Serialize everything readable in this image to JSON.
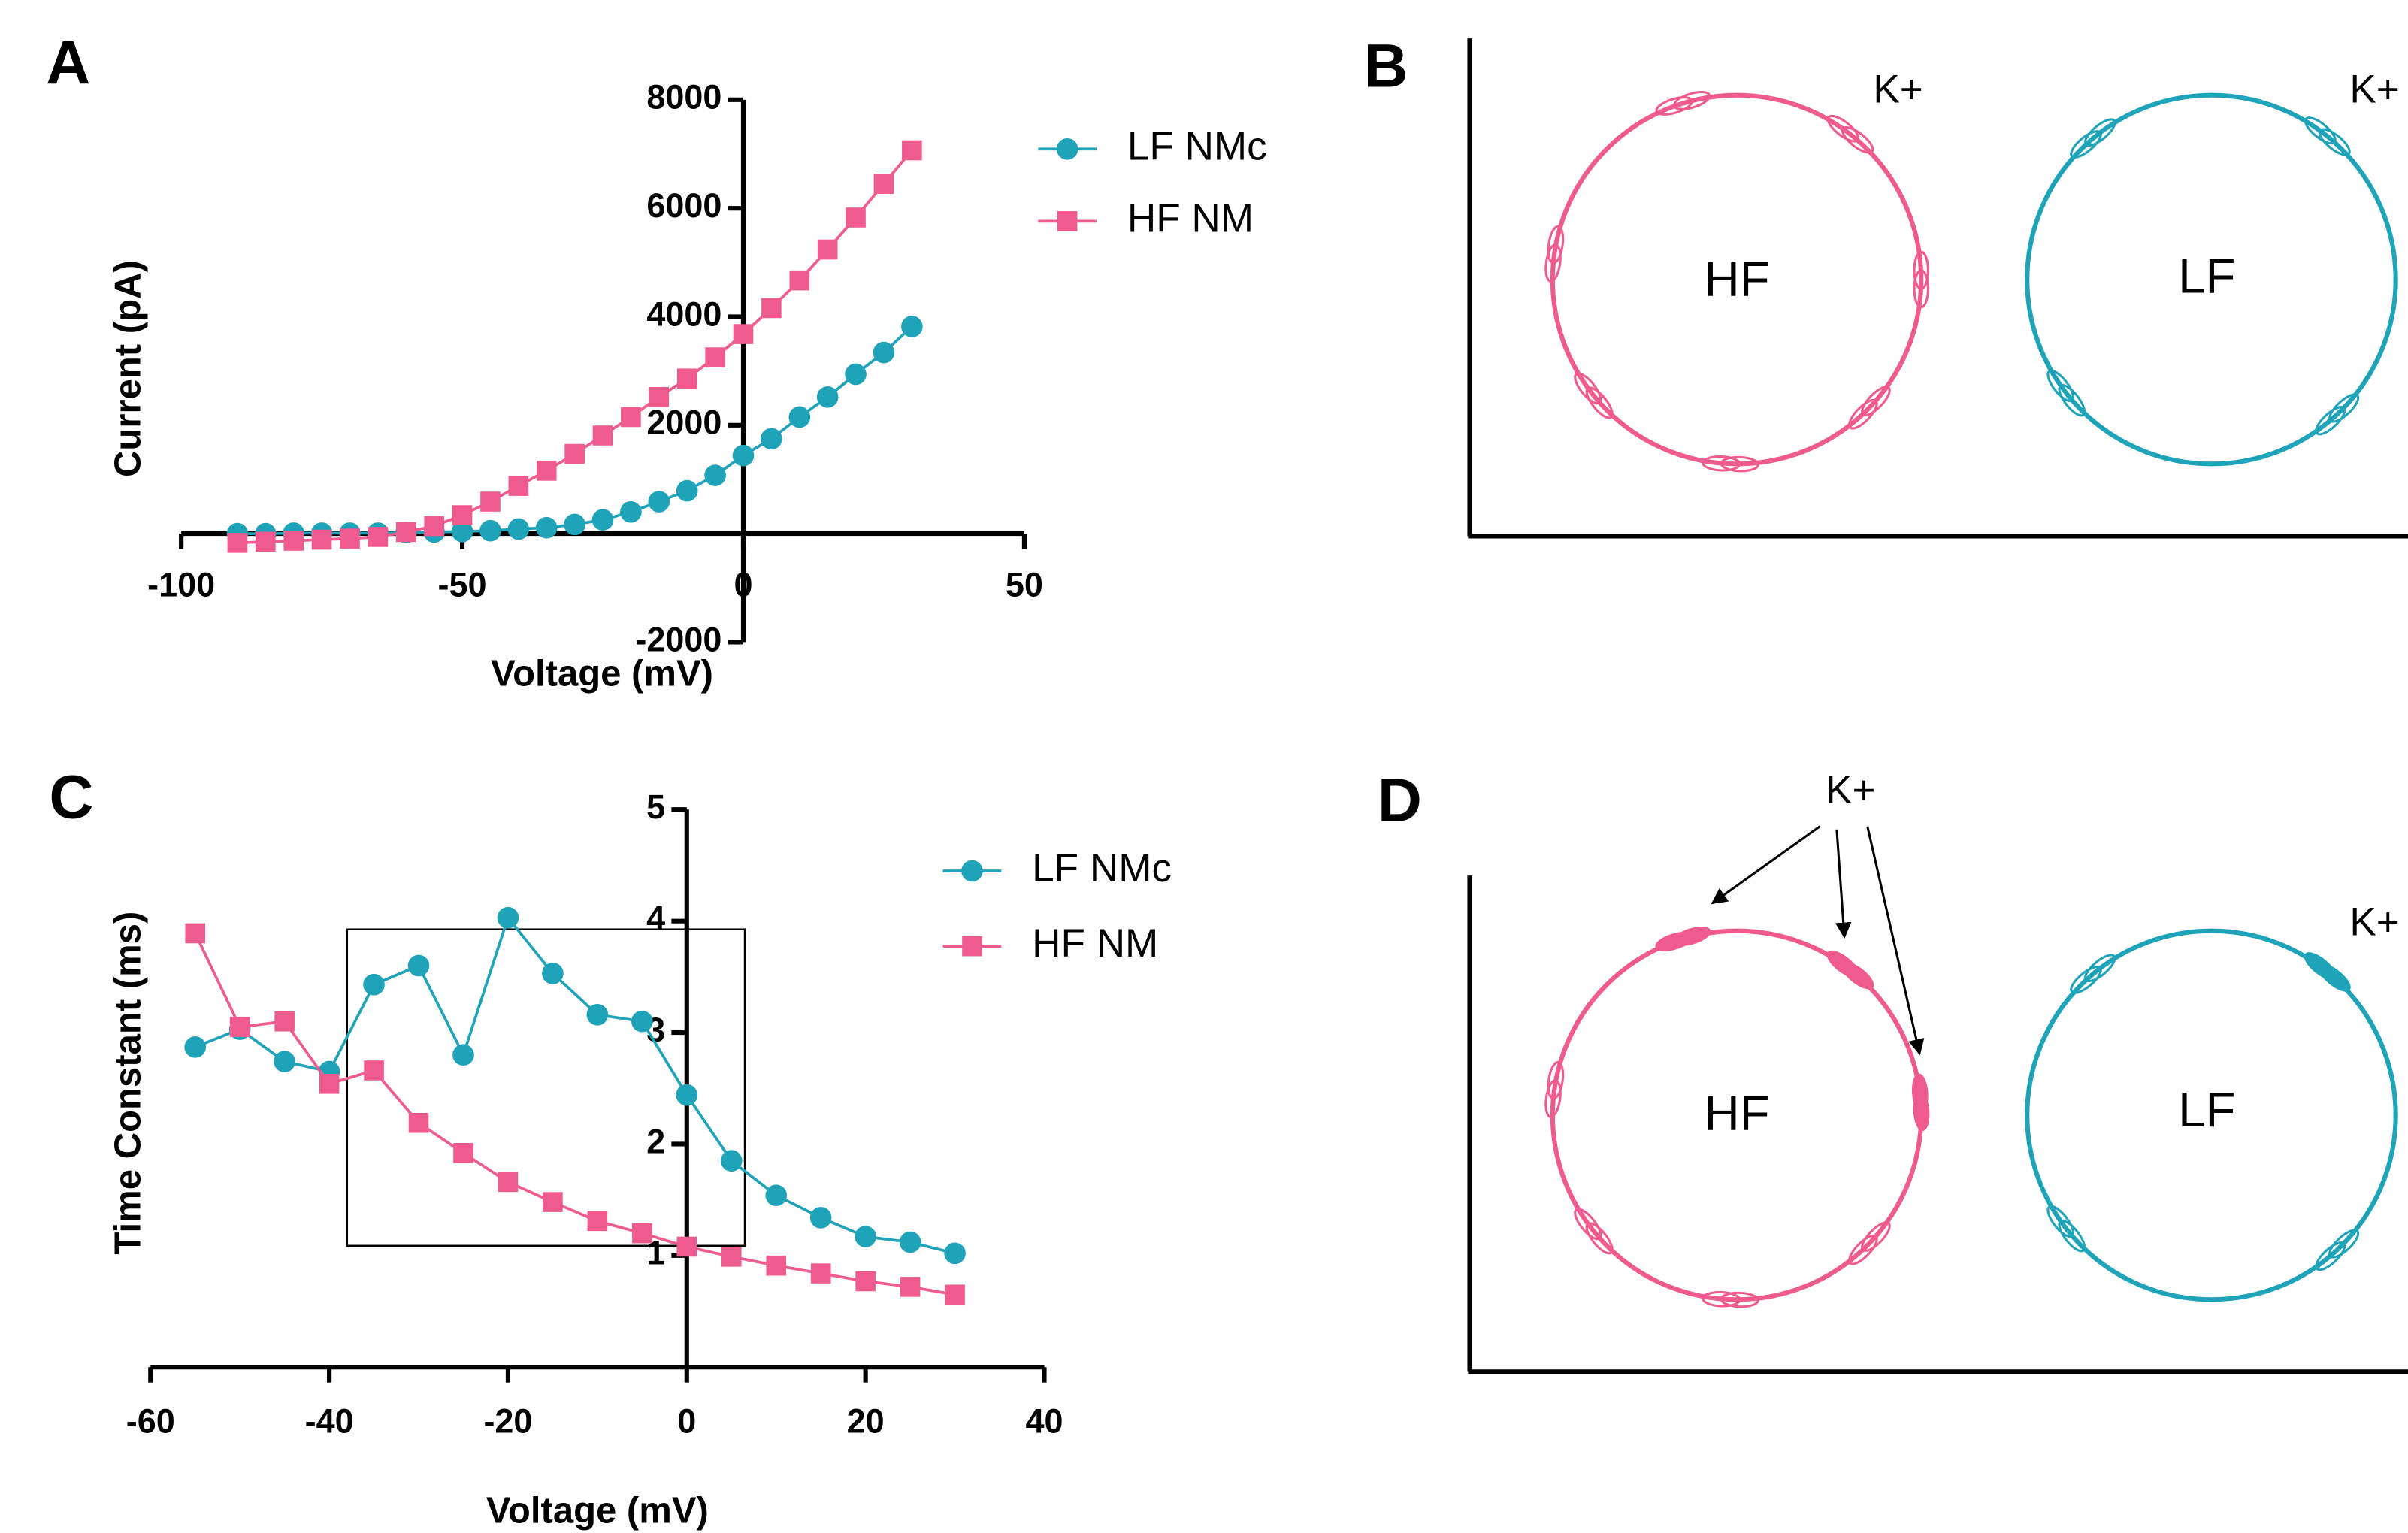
{
  "chart_data": [
    {
      "type": "line",
      "panel_label": "A",
      "x_label": "Voltage (mV)",
      "y_label": "Current (pA)",
      "x": [
        -90,
        -85,
        -80,
        -75,
        -70,
        -65,
        -60,
        -55,
        -50,
        -45,
        -40,
        -35,
        -30,
        -25,
        -20,
        -15,
        -10,
        -5,
        0,
        5,
        10,
        15,
        20,
        25,
        30
      ],
      "series": [
        {
          "name": "LF NMc",
          "color": "#1fa3b9",
          "marker": "circle",
          "values": [
            0,
            0,
            10,
            10,
            10,
            10,
            20,
            30,
            40,
            55,
            85,
            110,
            170,
            255,
            400,
            590,
            790,
            1075,
            1440,
            1750,
            2150,
            2520,
            2940,
            3340,
            3820
          ]
        },
        {
          "name": "HF NM",
          "color": "#ef5a8f",
          "marker": "square",
          "values": [
            -170,
            -150,
            -130,
            -110,
            -90,
            -60,
            30,
            140,
            340,
            590,
            880,
            1160,
            1470,
            1810,
            2150,
            2520,
            2860,
            3250,
            3680,
            4160,
            4670,
            5240,
            5830,
            6450,
            7070
          ]
        }
      ],
      "xlim": [
        -100,
        50
      ],
      "xticks": [
        -100,
        -50,
        0,
        50
      ],
      "ylim": [
        -2000,
        8000
      ],
      "yticks": [
        -2000,
        2000,
        4000,
        6000,
        8000
      ]
    },
    {
      "type": "line",
      "panel_label": "C",
      "x_label": "Voltage (mV)",
      "y_label": "Time Constant (ms)",
      "x": [
        -55,
        -50,
        -45,
        -40,
        -35,
        -30,
        -25,
        -20,
        -15,
        -10,
        -5,
        0,
        5,
        10,
        15,
        20,
        25,
        30
      ],
      "series": [
        {
          "name": "LF NMc",
          "color": "#1fa3b9",
          "marker": "circle",
          "values": [
            2.87,
            3.03,
            2.74,
            2.65,
            3.43,
            3.6,
            2.8,
            4.03,
            3.53,
            3.16,
            3.1,
            2.44,
            1.85,
            1.54,
            1.34,
            1.17,
            1.12,
            1.02
          ]
        },
        {
          "name": "HF NM",
          "color": "#ef5a8f",
          "marker": "square",
          "values": [
            3.89,
            3.05,
            3.1,
            2.54,
            2.66,
            2.19,
            1.92,
            1.66,
            1.48,
            1.31,
            1.2,
            1.08,
            0.99,
            0.91,
            0.84,
            0.77,
            0.72,
            0.65
          ]
        }
      ],
      "xlim": [
        -60,
        40
      ],
      "xticks": [
        -60,
        -40,
        -20,
        0,
        20,
        40
      ],
      "ylim": [
        0,
        5
      ],
      "yticks": [
        1,
        2,
        3,
        4,
        5
      ]
    }
  ],
  "diagrams": [
    {
      "panel_label": "B",
      "cells": [
        "HF",
        "LF"
      ],
      "ions": [
        "K+",
        "K+"
      ]
    },
    {
      "panel_label": "D",
      "cells": [
        "HF",
        "LF"
      ],
      "ions": [
        "K+",
        "K+"
      ]
    }
  ]
}
